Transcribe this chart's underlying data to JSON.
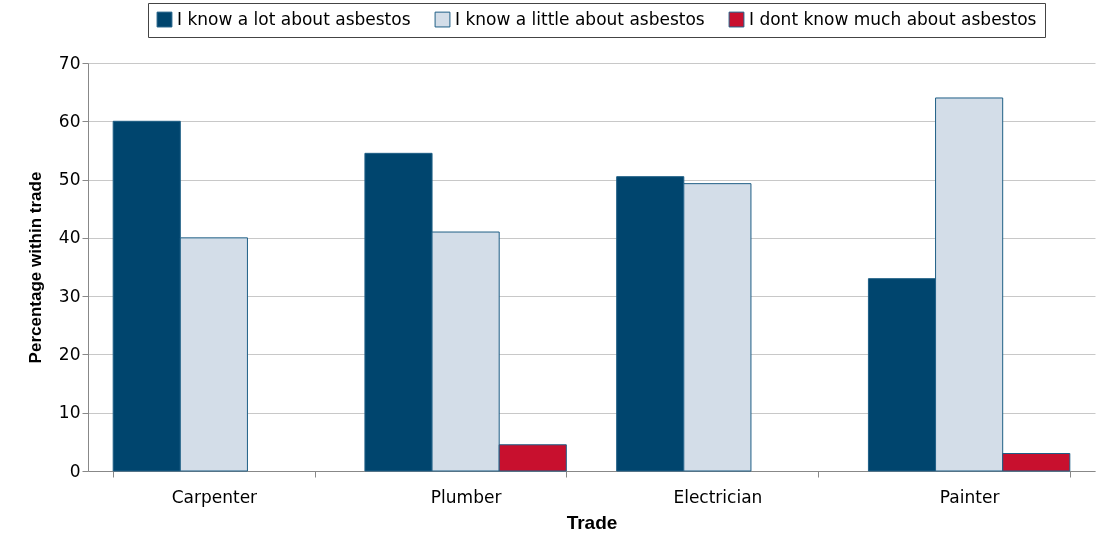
{
  "chart_data": {
    "type": "bar",
    "xlabel": "Trade",
    "ylabel": "Percentage within trade",
    "categories": [
      "Carpenter",
      "Plumber",
      "Electrician",
      "Painter"
    ],
    "series": [
      {
        "name": "I know a lot about asbestos",
        "color": "#00456e",
        "values": [
          60,
          54.5,
          50.5,
          33
        ]
      },
      {
        "name": "I know a little about asbestos",
        "color": "#d3dde8",
        "values": [
          40,
          41,
          49.3,
          64
        ]
      },
      {
        "name": "I dont know much about asbestos",
        "color": "#c8102e",
        "values": [
          0,
          4.5,
          0,
          3
        ]
      }
    ],
    "ylim": [
      0,
      70
    ],
    "yticks": [
      0,
      10,
      20,
      30,
      40,
      50,
      60,
      70
    ],
    "grid": "y",
    "legend": "top right"
  }
}
